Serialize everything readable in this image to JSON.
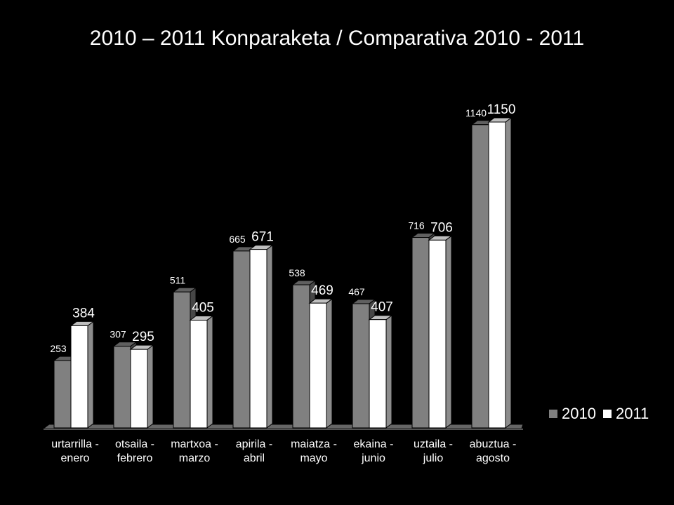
{
  "chart_data": {
    "type": "bar",
    "title": "2010 – 2011 Konparaketa / Comparativa 2010 - 2011",
    "categories": [
      [
        "urtarrilla -",
        "enero"
      ],
      [
        "otsaila -",
        "febrero"
      ],
      [
        "martxoa -",
        "marzo"
      ],
      [
        "apirila -",
        "abril"
      ],
      [
        "maiatza -",
        "mayo"
      ],
      [
        "ekaina -",
        "junio"
      ],
      [
        "uztaila -",
        "julio"
      ],
      [
        "abuztua -",
        "agosto"
      ]
    ],
    "series": [
      {
        "name": "2010",
        "color": "#808080",
        "values": [
          253,
          307,
          511,
          665,
          538,
          467,
          716,
          1140
        ]
      },
      {
        "name": "2011",
        "color": "#ffffff",
        "values": [
          384,
          295,
          405,
          671,
          469,
          407,
          706,
          1150
        ]
      }
    ],
    "ylim": [
      0,
      1150
    ],
    "grid": false,
    "legend_position": "bottom-right"
  },
  "colors": {
    "background": "#000000",
    "text": "#ffffff",
    "series_2010": "#808080",
    "series_2011": "#ffffff"
  }
}
